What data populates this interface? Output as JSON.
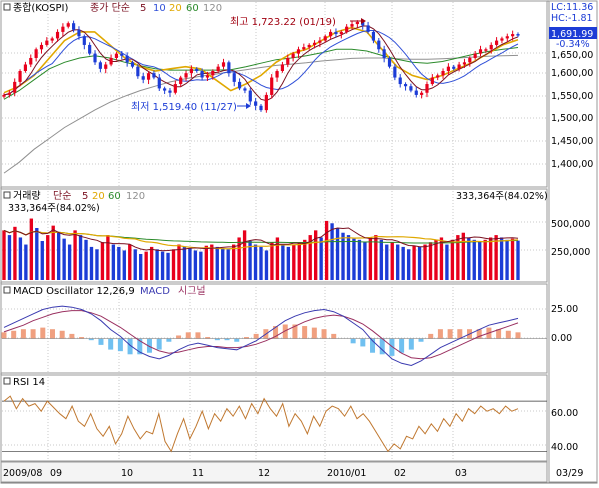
{
  "colors": {
    "up": "#e8001c",
    "down": "#1c3cd6",
    "ma5": "#7a1020",
    "ma10": "#3050d8",
    "ma20": "#e0a800",
    "ma60": "#2a8a2a",
    "ma120": "#909090",
    "price_box": "#1c3cd6",
    "grid": "#c8c8c8",
    "rsi_line": "#c07830",
    "macd_line": "#3a3ab0",
    "signal_line": "#9a3060",
    "osc_pos": "#f0a080",
    "osc_neg": "#70c0f0"
  },
  "price_panel": {
    "legend": {
      "title": "종합(KOSPI)",
      "label": "종가 단순",
      "periods": [
        "5",
        "10",
        "20",
        "60",
        "120"
      ]
    },
    "hi_label": "최고 1,723.22 (01/19)",
    "lo_label": "최저 1,519.40 (11/27)",
    "lc": "LC:11.36",
    "hc": "HC:-1.81",
    "current_price": "1,691.99",
    "change_pct": "-0.34%",
    "y_ticks": [
      "1,650,00",
      "1,600,00",
      "1,550,00",
      "1,500,00",
      "1,450,00",
      "1,400,00"
    ]
  },
  "volume_panel": {
    "legend": {
      "title": "거래량",
      "label": "단순",
      "periods": [
        "5",
        "20",
        "60",
        "120"
      ]
    },
    "left_value": "333,364주(84.02%)",
    "right_value": "333,364주(84.02%)",
    "y_ticks": [
      "500,000",
      "250,000"
    ]
  },
  "macd_panel": {
    "legend": "MACD Oscillator 12,26,9",
    "macd_label": "MACD",
    "signal_label": "시그널",
    "y_ticks": [
      "25.00",
      "0.00"
    ]
  },
  "rsi_panel": {
    "legend": "RSI 14",
    "y_ticks": [
      "60.00",
      "40.00"
    ]
  },
  "x_axis": {
    "labels": [
      "2009/08",
      "09",
      "10",
      "11",
      "12",
      "2010/01",
      "02",
      "03"
    ],
    "right_label": "03/29"
  },
  "chart_data": {
    "type": "candlestick",
    "title": "종합(KOSPI)",
    "x_range": [
      "2009/08",
      "2010/03/29"
    ],
    "price_ylim": [
      1350,
      1755
    ],
    "price_high": {
      "value": 1723.22,
      "date": "01/19"
    },
    "price_low": {
      "value": 1519.4,
      "date": "11/27"
    },
    "price_path": [
      1555,
      1560,
      1585,
      1610,
      1625,
      1640,
      1660,
      1670,
      1680,
      1685,
      1700,
      1712,
      1720,
      1705,
      1690,
      1670,
      1650,
      1630,
      1615,
      1625,
      1640,
      1650,
      1645,
      1630,
      1620,
      1598,
      1590,
      1605,
      1595,
      1570,
      1565,
      1560,
      1580,
      1595,
      1605,
      1615,
      1610,
      1595,
      1600,
      1610,
      1620,
      1630,
      1605,
      1585,
      1570,
      1565,
      1540,
      1530,
      1520,
      1555,
      1595,
      1610,
      1625,
      1640,
      1650,
      1660,
      1665,
      1670,
      1675,
      1680,
      1690,
      1700,
      1695,
      1700,
      1712,
      1718,
      1723,
      1715,
      1700,
      1680,
      1660,
      1640,
      1620,
      1595,
      1580,
      1575,
      1565,
      1555,
      1560,
      1580,
      1595,
      1600,
      1610,
      1620,
      1615,
      1625,
      1630,
      1640,
      1650,
      1660,
      1660,
      1670,
      1680,
      1685,
      1690,
      1695,
      1692
    ],
    "ma_paths": {
      "ma20": [
        1560,
        1575,
        1600,
        1640,
        1680,
        1700,
        1700,
        1670,
        1640,
        1620,
        1610,
        1615,
        1620,
        1615,
        1590,
        1565,
        1580,
        1600,
        1630,
        1650,
        1660,
        1680,
        1700,
        1710,
        1700,
        1660,
        1620,
        1600,
        1590,
        1600,
        1615,
        1630,
        1650,
        1670,
        1682
      ],
      "ma60": [
        1545,
        1565,
        1590,
        1615,
        1630,
        1640,
        1645,
        1640,
        1630,
        1622,
        1615,
        1612,
        1612,
        1612,
        1612,
        1613,
        1620,
        1628,
        1636,
        1640,
        1645,
        1652,
        1660,
        1660,
        1656,
        1646,
        1637,
        1630,
        1628,
        1632,
        1640,
        1648,
        1655,
        1660,
        1664
      ],
      "ma120": [
        1375,
        1400,
        1430,
        1455,
        1480,
        1500,
        1520,
        1538,
        1552,
        1565,
        1575,
        1585,
        1592,
        1598,
        1603,
        1608,
        1613,
        1618,
        1623,
        1626,
        1629,
        1633,
        1636,
        1639,
        1640,
        1640,
        1638,
        1637,
        1637,
        1638,
        1640,
        1642,
        1644,
        1645,
        1646
      ]
    },
    "volume_ylim": [
      0,
      660000
    ],
    "volume_last": 333364,
    "volume_path": [
      420000,
      380000,
      450000,
      360000,
      300000,
      520000,
      440000,
      330000,
      380000,
      460000,
      400000,
      350000,
      300000,
      420000,
      380000,
      340000,
      280000,
      260000,
      320000,
      380000,
      300000,
      280000,
      250000,
      300000,
      260000,
      220000,
      240000,
      280000,
      260000,
      240000,
      230000,
      260000,
      300000,
      280000,
      270000,
      250000,
      240000,
      290000,
      300000,
      280000,
      270000,
      260000,
      300000,
      360000,
      420000,
      330000,
      300000,
      280000,
      250000,
      320000,
      360000,
      300000,
      280000,
      300000,
      320000,
      340000,
      380000,
      420000,
      360000,
      500000,
      480000,
      440000,
      400000,
      380000,
      350000,
      340000,
      320000,
      360000,
      380000,
      340000,
      300000,
      320000,
      300000,
      280000,
      260000,
      290000,
      280000,
      300000,
      320000,
      340000,
      360000,
      300000,
      340000,
      380000,
      400000,
      360000,
      340000,
      330000,
      340000,
      360000,
      380000,
      360000,
      340000,
      350000,
      333364
    ],
    "macd_ylim": [
      -28,
      38
    ],
    "macd_path": [
      10,
      14,
      18,
      22,
      26,
      28,
      29,
      28,
      26,
      22,
      16,
      8,
      2,
      -6,
      -12,
      -16,
      -18,
      -15,
      -10,
      -6,
      -4,
      -6,
      -8,
      -9,
      -10,
      -6,
      -2,
      4,
      10,
      16,
      20,
      23,
      25,
      26,
      24,
      20,
      14,
      8,
      -2,
      -10,
      -18,
      -22,
      -24,
      -20,
      -14,
      -8,
      -4,
      0,
      4,
      8,
      12,
      14,
      16,
      18
    ],
    "signal_path": [
      6,
      9,
      12,
      16,
      19,
      22,
      24,
      25,
      25,
      23,
      20,
      15,
      10,
      4,
      -2,
      -7,
      -11,
      -13,
      -12,
      -10,
      -8,
      -7,
      -7,
      -8,
      -8,
      -7,
      -5,
      -2,
      2,
      7,
      11,
      15,
      18,
      20,
      21,
      20,
      17,
      13,
      7,
      0,
      -7,
      -13,
      -17,
      -18,
      -17,
      -14,
      -10,
      -6,
      -2,
      2,
      5,
      8,
      11,
      14
    ],
    "rsi_ylim": [
      24,
      82
    ],
    "rsi_levels": [
      70,
      30
    ],
    "rsi_path": [
      70,
      74,
      64,
      72,
      66,
      68,
      62,
      70,
      65,
      60,
      56,
      66,
      54,
      50,
      60,
      48,
      42,
      50,
      36,
      44,
      58,
      48,
      40,
      46,
      44,
      60,
      38,
      30,
      44,
      56,
      40,
      50,
      62,
      48,
      60,
      54,
      64,
      58,
      66,
      56,
      68,
      60,
      72,
      64,
      58,
      68,
      50,
      60,
      54,
      44,
      58,
      50,
      62,
      66,
      64,
      58,
      66,
      56,
      60,
      54,
      46,
      38,
      30,
      36,
      32,
      42,
      40,
      50,
      44,
      52,
      46,
      56,
      50,
      60,
      54,
      64,
      60,
      66,
      62,
      64,
      60,
      66,
      62,
      64
    ]
  }
}
